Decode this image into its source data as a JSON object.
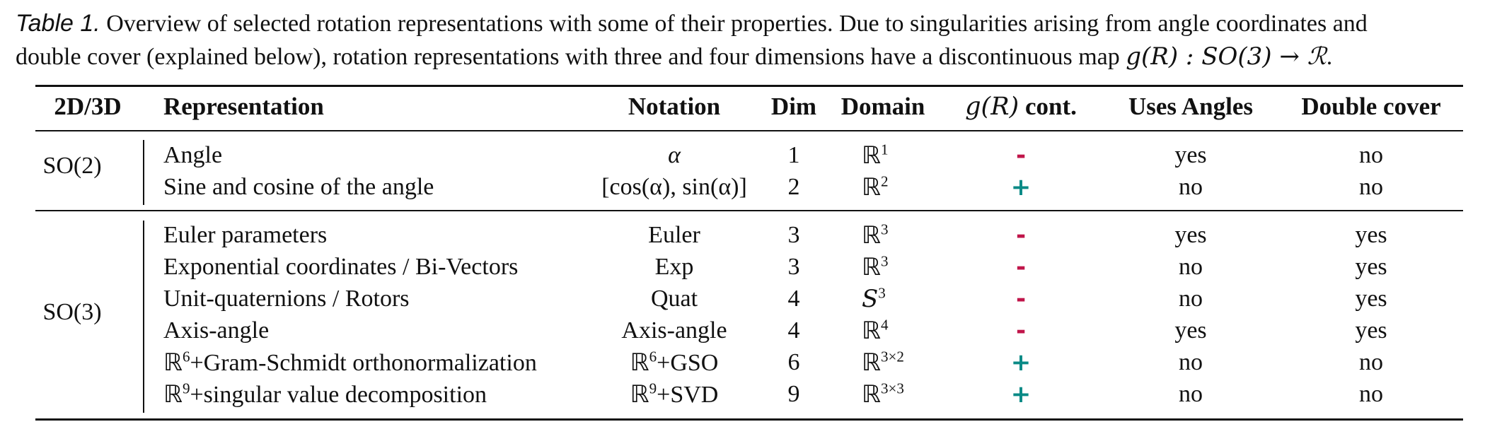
{
  "caption": {
    "label": "Table 1.",
    "line1": "Overview of selected rotation representations with some of their properties. Due to singularities arising from angle coordinates and",
    "line2_pre": "double cover (explained below), rotation representations with three and four dimensions have a discontinuous map ",
    "line2_math": "g(R) : SO(3) → ℛ",
    "line2_post": "."
  },
  "headers": {
    "dim2d3d": "2D/3D",
    "representation": "Representation",
    "notation": "Notation",
    "dim": "Dim",
    "domain": "Domain",
    "cont_math": "g(R)",
    "cont_text": " cont.",
    "uses_angles": "Uses Angles",
    "double_cover": "Double cover"
  },
  "groups": [
    {
      "label": "SO(2)",
      "rows": [
        {
          "representation": "Angle",
          "notation": "α",
          "dim": "1",
          "domain_base": "ℝ",
          "domain_sup": "1",
          "cont": "-",
          "uses_angles": "yes",
          "double_cover": "no"
        },
        {
          "representation": "Sine and cosine of the angle",
          "notation": "[cos(α), sin(α)]",
          "dim": "2",
          "domain_base": "ℝ",
          "domain_sup": "2",
          "cont": "+",
          "uses_angles": "no",
          "double_cover": "no"
        }
      ]
    },
    {
      "label": "SO(3)",
      "rows": [
        {
          "representation": "Euler parameters",
          "notation": "Euler",
          "dim": "3",
          "domain_base": "ℝ",
          "domain_sup": "3",
          "cont": "-",
          "uses_angles": "yes",
          "double_cover": "yes"
        },
        {
          "representation": "Exponential coordinates / Bi-Vectors",
          "notation": "Exp",
          "dim": "3",
          "domain_base": "ℝ",
          "domain_sup": "3",
          "cont": "-",
          "uses_angles": "no",
          "double_cover": "yes"
        },
        {
          "representation": "Unit-quaternions / Rotors",
          "notation": "Quat",
          "dim": "4",
          "domain_base": "S",
          "domain_sup": "3",
          "cont": "-",
          "uses_angles": "no",
          "double_cover": "yes"
        },
        {
          "representation": "Axis-angle",
          "notation": "Axis-angle",
          "dim": "4",
          "domain_base": "ℝ",
          "domain_sup": "4",
          "cont": "-",
          "uses_angles": "yes",
          "double_cover": "yes"
        },
        {
          "representation_base": "ℝ",
          "representation_sup": "6",
          "representation": "+Gram-Schmidt orthonormalization",
          "notation_base": "ℝ",
          "notation_sup": "6",
          "notation": "+GSO",
          "dim": "6",
          "domain_base": "ℝ",
          "domain_sup": "3×2",
          "cont": "+",
          "uses_angles": "no",
          "double_cover": "no"
        },
        {
          "representation_base": "ℝ",
          "representation_sup": "9",
          "representation": "+singular value decomposition",
          "notation_base": "ℝ",
          "notation_sup": "9",
          "notation": "+SVD",
          "dim": "9",
          "domain_base": "ℝ",
          "domain_sup": "3×3",
          "cont": "+",
          "uses_angles": "no",
          "double_cover": "no"
        }
      ]
    }
  ]
}
